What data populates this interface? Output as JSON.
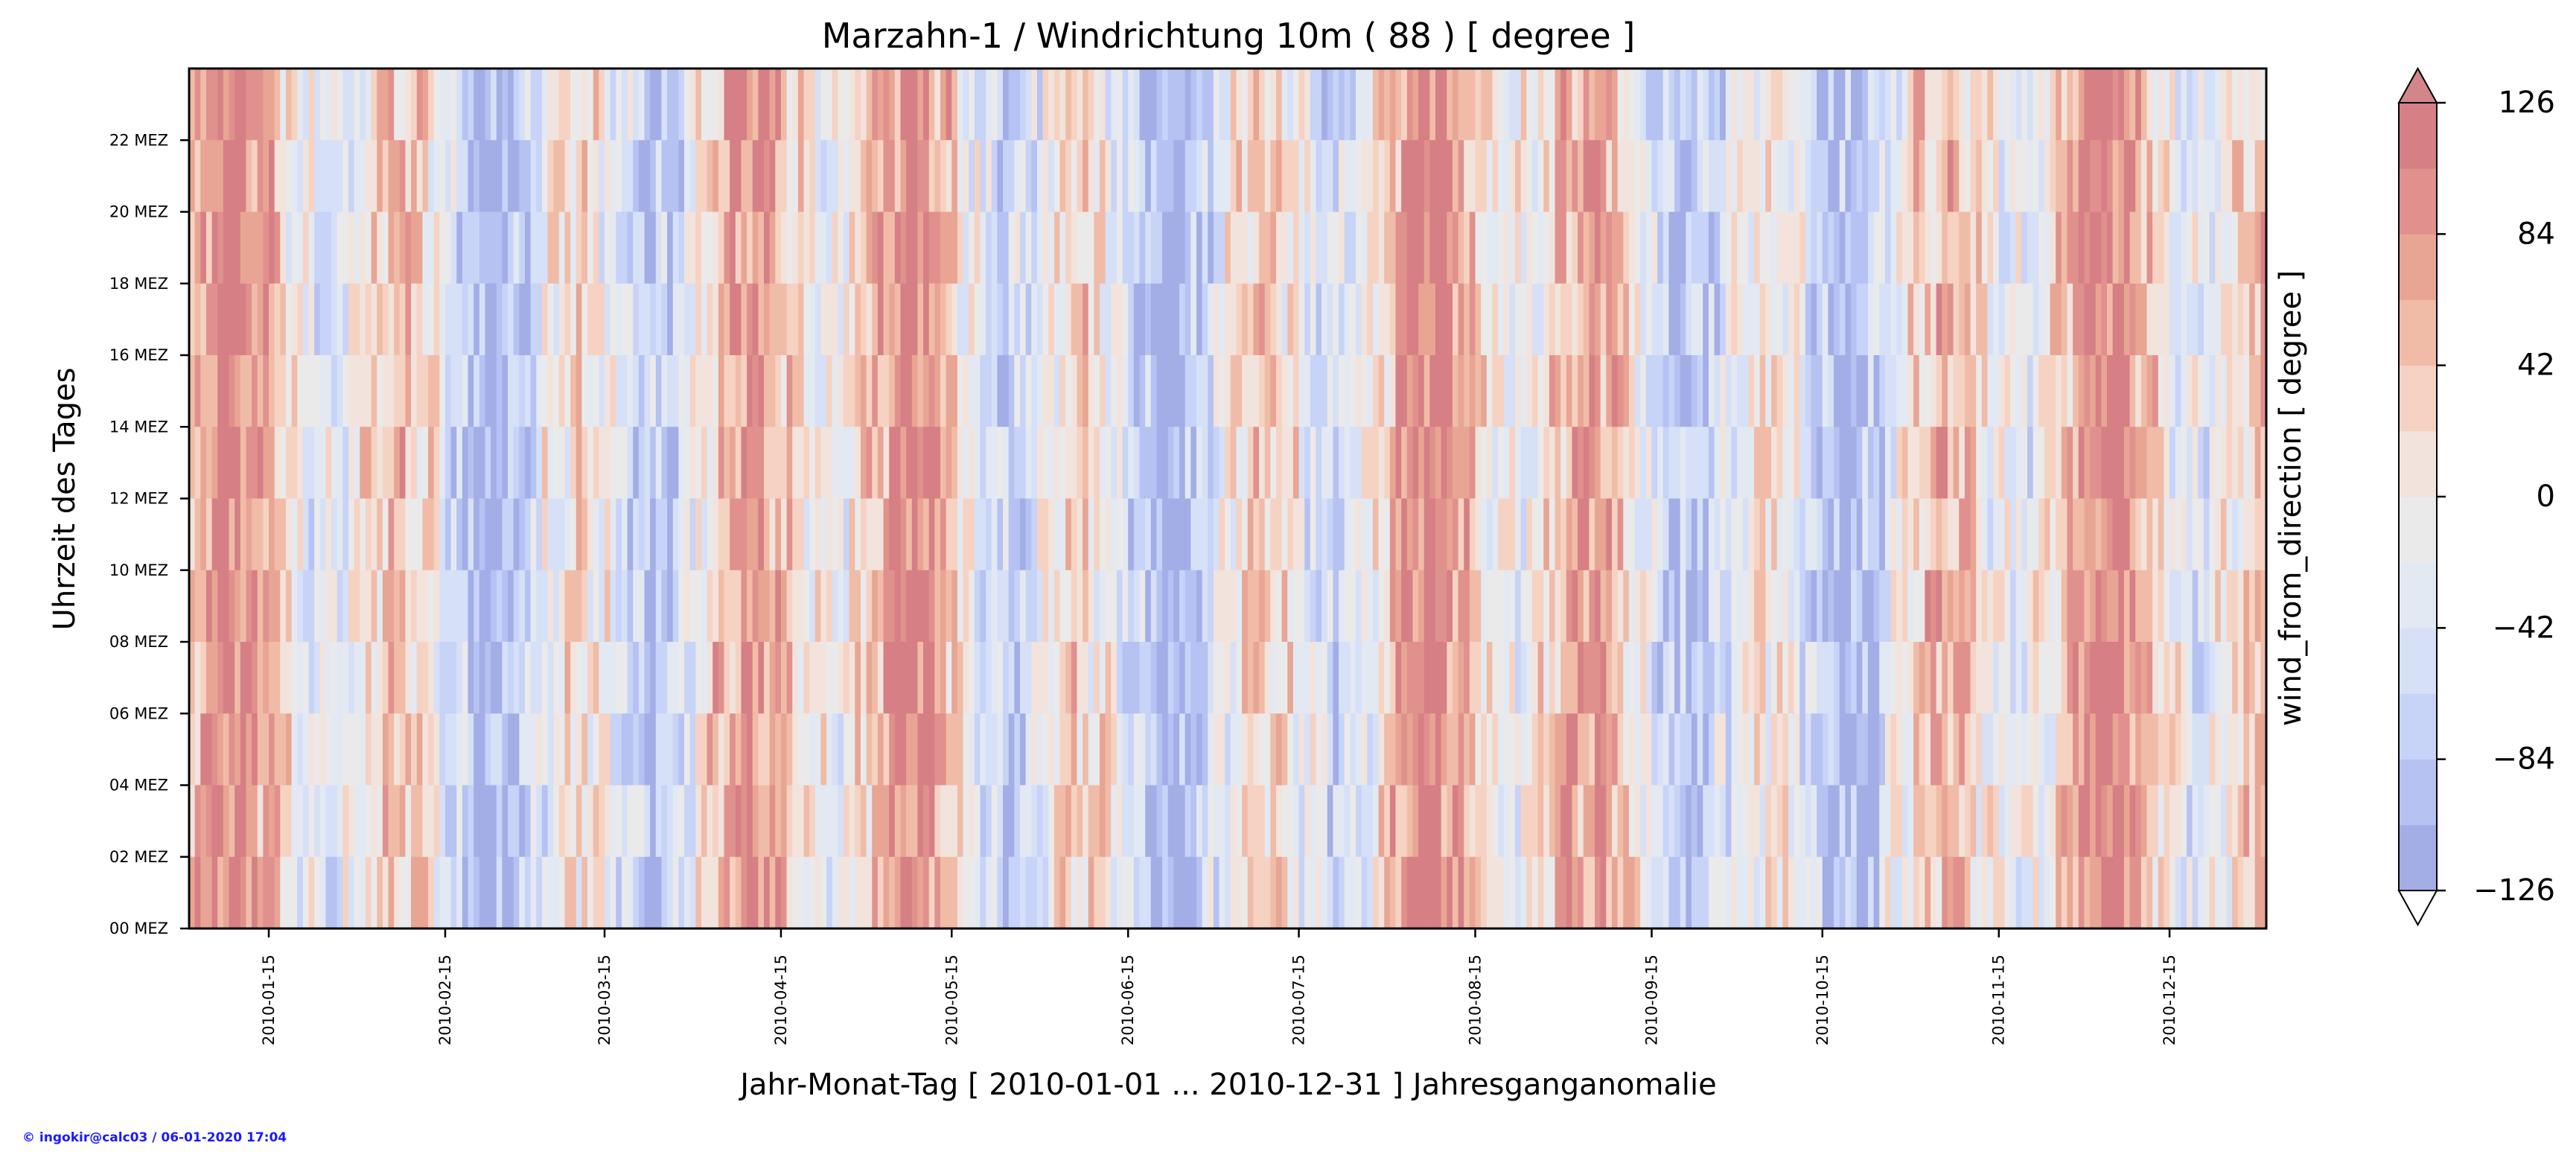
{
  "chart_data": {
    "type": "heatmap",
    "title": "Marzahn-1 / Windrichtung 10m ( 88 ) [ degree ]",
    "xlabel": "Jahr-Monat-Tag [ 2010-01-01 ... 2010-12-31 ] Jahresganganomalie",
    "ylabel": "Uhrzeit des Tages",
    "colorbar_label": "wind_from_direction [ degree ]",
    "x_range": [
      "2010-01-01",
      "2010-12-31"
    ],
    "y_range": [
      0,
      24
    ],
    "x_tick_labels": [
      "2010-01-15",
      "2010-02-15",
      "2010-03-15",
      "2010-04-15",
      "2010-05-15",
      "2010-06-15",
      "2010-07-15",
      "2010-08-15",
      "2010-09-15",
      "2010-10-15",
      "2010-11-15",
      "2010-12-15"
    ],
    "x_tick_dates": [
      "2010-01-15",
      "2010-02-15",
      "2010-03-15",
      "2010-04-15",
      "2010-05-15",
      "2010-06-15",
      "2010-07-15",
      "2010-08-15",
      "2010-09-15",
      "2010-10-15",
      "2010-11-15",
      "2010-12-15"
    ],
    "y_tick_labels": [
      "00 MEZ",
      "02 MEZ",
      "04 MEZ",
      "06 MEZ",
      "08 MEZ",
      "10 MEZ",
      "12 MEZ",
      "14 MEZ",
      "16 MEZ",
      "18 MEZ",
      "20 MEZ",
      "22 MEZ"
    ],
    "y_tick_hours": [
      0,
      2,
      4,
      6,
      8,
      10,
      12,
      14,
      16,
      18,
      20,
      22
    ],
    "colorbar": {
      "ticks": [
        -126,
        -84,
        -42,
        0,
        42,
        84,
        126
      ],
      "tick_labels": [
        "−126",
        "−84",
        "−42",
        "0",
        "42",
        "84",
        "126"
      ],
      "levels": 12,
      "range": [
        -126,
        126
      ],
      "extend": "both",
      "colors": [
        "#a3ade6",
        "#b5c2f2",
        "#c7d3f7",
        "#d6e0f7",
        "#e3e9f2",
        "#ebeaea",
        "#f2e3dc",
        "#f6d2c2",
        "#f0bca7",
        "#e8a593",
        "#e0918d",
        "#d67f85"
      ],
      "under_color": "#ffffff",
      "over_color": "#d3868a"
    },
    "grid": false,
    "legend": "colorbar-right"
  },
  "footer": {
    "copyright": "© ingokir@calc03 / 06-01-2020 17:04"
  }
}
